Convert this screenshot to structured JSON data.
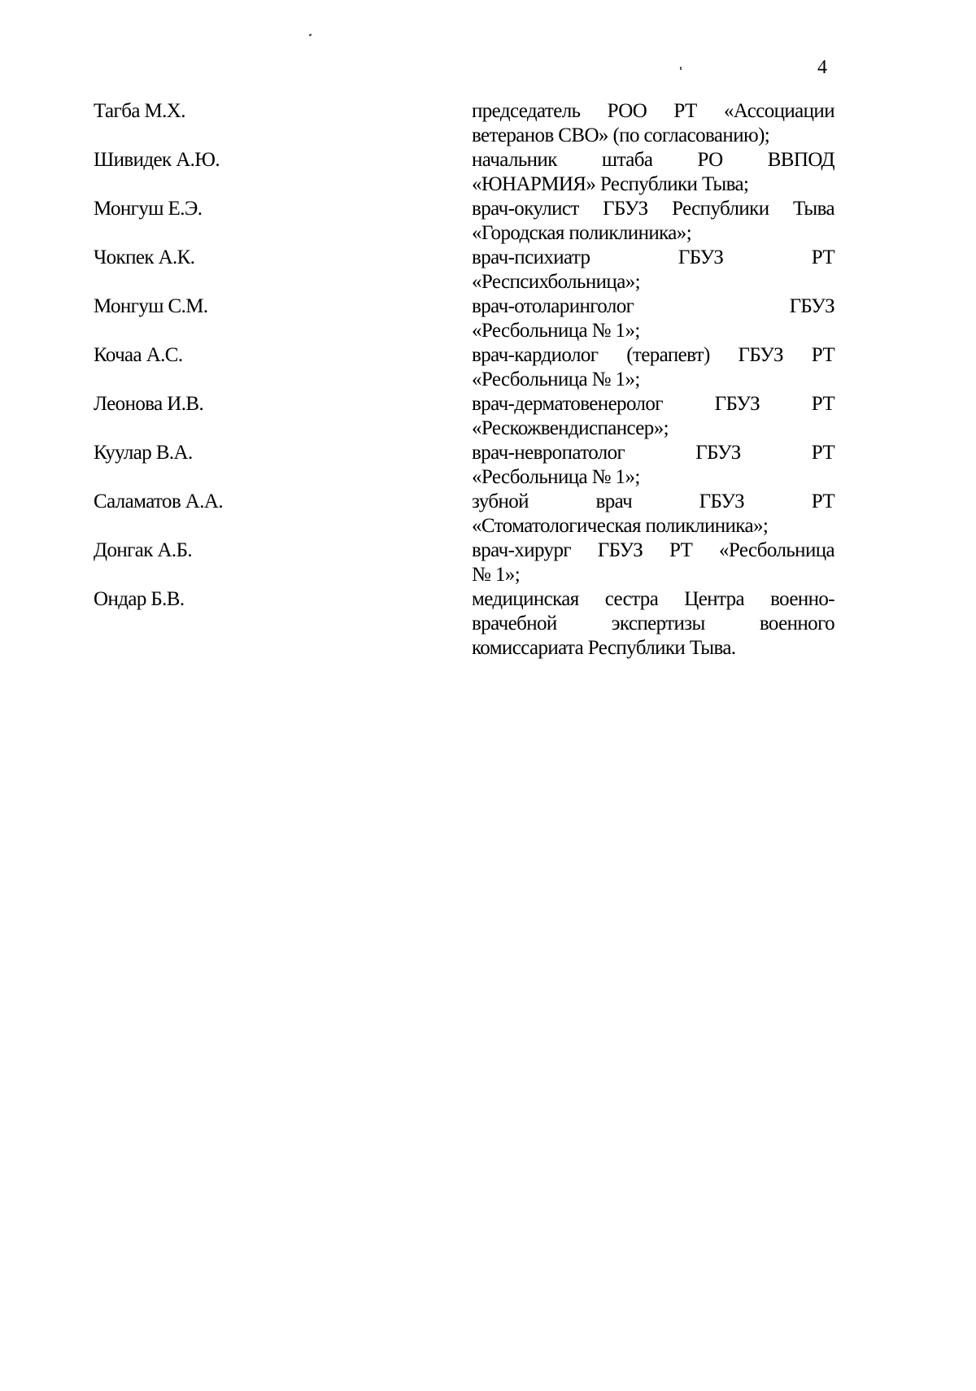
{
  "page_number": "4",
  "members": [
    {
      "name": "Тагба М.Х.",
      "lines": [
        "председатель РОО РТ «Ассоциации",
        "ветеранов СВО» (по согласованию);"
      ]
    },
    {
      "name": "Шивидек А.Ю.",
      "lines": [
        "начальник штаба РО ВВПОД",
        "«ЮНАРМИЯ» Республики Тыва;"
      ]
    },
    {
      "name": "Монгуш Е.Э.",
      "lines": [
        "врач-окулист ГБУЗ Республики Тыва",
        "«Городская поликлиника»;"
      ]
    },
    {
      "name": "Чокпек А.К.",
      "lines": [
        "врач-психиатр ГБУЗ РТ",
        "«Респсихбольница»;"
      ]
    },
    {
      "name": "Монгуш С.М.",
      "lines": [
        "врач-отоларинголог ГБУЗ",
        "«Ресбольница № 1»;"
      ]
    },
    {
      "name": "Кочаа А.С.",
      "lines": [
        "врач-кардиолог (терапевт) ГБУЗ РТ",
        "«Ресбольница № 1»;"
      ]
    },
    {
      "name": "Леонова И.В.",
      "lines": [
        "врач-дерматовенеролог ГБУЗ РТ",
        "«Рескожвендиспансер»;"
      ]
    },
    {
      "name": "Куулар В.А.",
      "lines": [
        "врач-невропатолог ГБУЗ РТ",
        "«Ресбольница № 1»;"
      ]
    },
    {
      "name": "Саламатов А.А.",
      "lines": [
        "зубной врач ГБУЗ РТ",
        "«Стоматологическая поликлиника»;"
      ]
    },
    {
      "name": "Донгак А.Б.",
      "lines": [
        "врач-хирург ГБУЗ РТ «Ресбольница",
        "№ 1»;"
      ]
    },
    {
      "name": "Ондар Б.В.",
      "lines": [
        "медицинская сестра Центра военно-",
        "врачебной экспертизы военного",
        "комиссариата Республики Тыва."
      ]
    }
  ]
}
